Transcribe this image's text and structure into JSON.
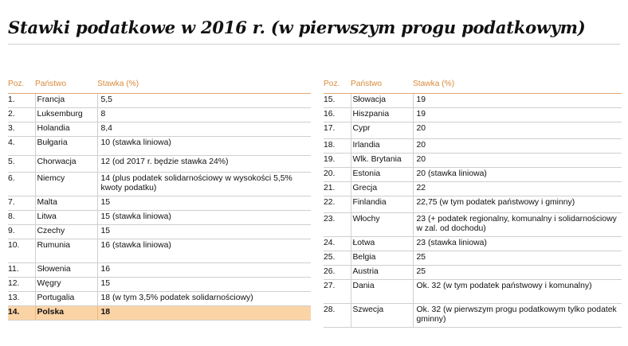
{
  "title": "Stawki podatkowe w 2016 r. (w pierwszym progu podatkowym)",
  "headers": {
    "pos": "Poz.",
    "country": "Państwo",
    "rate": "Stawka (%)"
  },
  "colors": {
    "header_text": "#d98a3b",
    "highlight_row": "#fbd4a6"
  },
  "left_rows": [
    {
      "pos": "1.",
      "country": "Francja",
      "rate": "5,5"
    },
    {
      "pos": "2.",
      "country": "Luksemburg",
      "rate": "8"
    },
    {
      "pos": "3.",
      "country": "Holandia",
      "rate": "8,4"
    },
    {
      "pos": "4.",
      "country": "Bułgaria",
      "rate": "10 (stawka liniowa)"
    },
    {
      "pos": "5.",
      "country": "Chorwacja",
      "rate": "12 (od 2017 r. będzie stawka 24%)"
    },
    {
      "pos": "6.",
      "country": "Niemcy",
      "rate": "14 (plus podatek solidarnościowy w wysokości 5,5% kwoty podatku)"
    },
    {
      "pos": "7.",
      "country": "Malta",
      "rate": "15"
    },
    {
      "pos": "8.",
      "country": "Litwa",
      "rate": "15 (stawka liniowa)"
    },
    {
      "pos": "9.",
      "country": "Czechy",
      "rate": "15"
    },
    {
      "pos": "10.",
      "country": "Rumunia",
      "rate": "16 (stawka liniowa)"
    },
    {
      "pos": "11.",
      "country": "Słowenia",
      "rate": "16"
    },
    {
      "pos": "12.",
      "country": "Węgry",
      "rate": "15"
    },
    {
      "pos": "13.",
      "country": "Portugalia",
      "rate": "18 (w tym 3,5% podatek solidarnościowy)"
    },
    {
      "pos": "14.",
      "country": "Polska",
      "rate": "18"
    }
  ],
  "right_rows": [
    {
      "pos": "15.",
      "country": "Słowacja",
      "rate": "19"
    },
    {
      "pos": "16.",
      "country": "Hiszpania",
      "rate": "19"
    },
    {
      "pos": "17.",
      "country": "Cypr",
      "rate": "20"
    },
    {
      "pos": "18.",
      "country": "Irlandia",
      "rate": "20"
    },
    {
      "pos": "19.",
      "country": "Wlk. Brytania",
      "rate": "20"
    },
    {
      "pos": "20.",
      "country": "Estonia",
      "rate": "20 (stawka liniowa)"
    },
    {
      "pos": "21.",
      "country": "Grecja",
      "rate": "22"
    },
    {
      "pos": "22.",
      "country": "Finlandia",
      "rate": "22,75 (w tym podatek państwowy i gminny)"
    },
    {
      "pos": "23.",
      "country": "Włochy",
      "rate": "23 (+ podatek regionalny, komunalny i solidarnościowy w zal. od dochodu)"
    },
    {
      "pos": "24.",
      "country": "Łotwa",
      "rate": "23 (stawka liniowa)"
    },
    {
      "pos": "25.",
      "country": "Belgia",
      "rate": "25"
    },
    {
      "pos": "26.",
      "country": "Austria",
      "rate": "25"
    },
    {
      "pos": "27.",
      "country": "Dania",
      "rate": "Ok. 32 (w tym podatek państwowy i komunalny)"
    },
    {
      "pos": "28.",
      "country": "Szwecja",
      "rate": "Ok. 32 (w pierwszym progu podatkowym tylko podatek gminny)"
    }
  ]
}
